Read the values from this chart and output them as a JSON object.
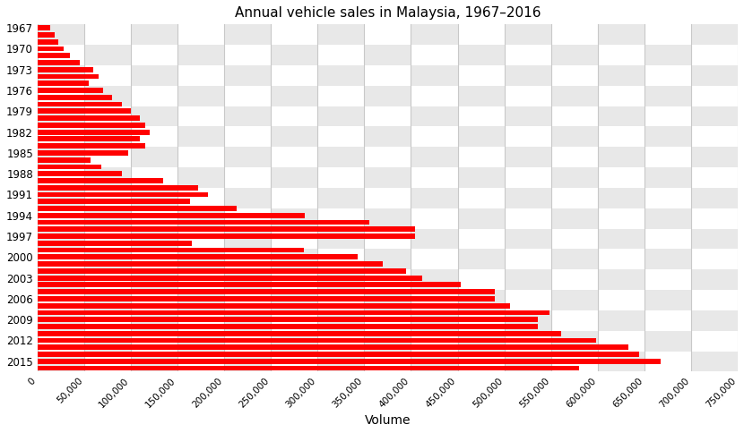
{
  "title": "Annual vehicle sales in Malaysia, 1967–2016",
  "xlabel": "Volume",
  "bar_color": "#ff0000",
  "grid_color": "#c8c8c8",
  "xlim": [
    0,
    750000
  ],
  "xticks": [
    0,
    50000,
    100000,
    150000,
    200000,
    250000,
    300000,
    350000,
    400000,
    450000,
    500000,
    550000,
    600000,
    650000,
    700000,
    750000
  ],
  "xtick_labels": [
    "0",
    "50,000",
    "100,000",
    "150,000",
    "200,000",
    "250,000",
    "300,000",
    "350,000",
    "400,000",
    "450,000",
    "500,000",
    "550,000",
    "600,000",
    "650,000",
    "700,000",
    "750,000"
  ],
  "years": [
    1967,
    1968,
    1969,
    1970,
    1971,
    1972,
    1973,
    1974,
    1975,
    1976,
    1977,
    1978,
    1979,
    1980,
    1981,
    1982,
    1983,
    1984,
    1985,
    1986,
    1987,
    1988,
    1989,
    1990,
    1991,
    1992,
    1993,
    1994,
    1995,
    1996,
    1997,
    1998,
    1999,
    2000,
    2001,
    2002,
    2003,
    2004,
    2005,
    2006,
    2007,
    2008,
    2009,
    2010,
    2011,
    2012,
    2013,
    2014,
    2015,
    2016
  ],
  "values": [
    14000,
    18000,
    22000,
    28000,
    35000,
    45000,
    60000,
    65000,
    55000,
    70000,
    80000,
    90000,
    100000,
    110000,
    115000,
    120000,
    110000,
    115000,
    97000,
    57000,
    68000,
    90000,
    135000,
    172000,
    183000,
    163000,
    213000,
    286000,
    355000,
    404000,
    404000,
    165000,
    285000,
    343000,
    370000,
    395000,
    412000,
    453000,
    490000,
    490000,
    506000,
    548000,
    536000,
    536000,
    561000,
    598000,
    633000,
    644000,
    667000,
    580000
  ],
  "ytick_labels": [
    "1967",
    "1970",
    "1973",
    "1976",
    "1979",
    "1982",
    "1985",
    "1988",
    "1991",
    "1994",
    "1997",
    "2000",
    "2003",
    "2006",
    "2009",
    "2012",
    "2015"
  ],
  "ytick_positions": [
    1967,
    1970,
    1973,
    1976,
    1979,
    1982,
    1985,
    1988,
    1991,
    1994,
    1997,
    2000,
    2003,
    2006,
    2009,
    2012,
    2015
  ],
  "checker_light": "#e8e8e8",
  "checker_dark": "#ffffff",
  "checker_cols": 15,
  "checker_rows": 17
}
